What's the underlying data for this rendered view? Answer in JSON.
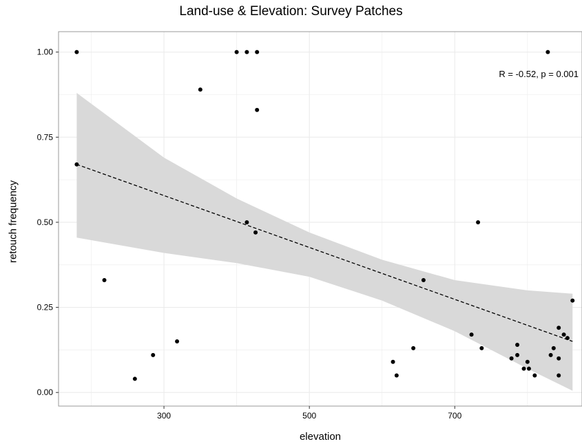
{
  "chart_data": {
    "type": "scatter",
    "title": "Land-use & Elevation: Survey Patches",
    "xlabel": "elevation",
    "ylabel": "retouch frequency",
    "xlim": [
      155,
      875
    ],
    "ylim": [
      -0.04,
      1.06
    ],
    "xticks": [
      300,
      500,
      700
    ],
    "xtick_labels": [
      "300",
      "500",
      "700"
    ],
    "yticks": [
      0,
      0.25,
      0.5,
      0.75,
      1.0
    ],
    "ytick_labels": [
      "0.00",
      "0.25",
      "0.50",
      "0.75",
      "1.00"
    ],
    "grid": true,
    "annotation": "R = -0.52, p = 0.001",
    "points": [
      {
        "x": 180,
        "y": 1.0
      },
      {
        "x": 180,
        "y": 0.67
      },
      {
        "x": 218,
        "y": 0.33
      },
      {
        "x": 260,
        "y": 0.04
      },
      {
        "x": 285,
        "y": 0.11
      },
      {
        "x": 318,
        "y": 0.15
      },
      {
        "x": 350,
        "y": 0.89
      },
      {
        "x": 400,
        "y": 1.0
      },
      {
        "x": 414,
        "y": 1.0
      },
      {
        "x": 428,
        "y": 1.0
      },
      {
        "x": 428,
        "y": 0.83
      },
      {
        "x": 414,
        "y": 0.5
      },
      {
        "x": 426,
        "y": 0.47
      },
      {
        "x": 615,
        "y": 0.09
      },
      {
        "x": 620,
        "y": 0.05
      },
      {
        "x": 643,
        "y": 0.13
      },
      {
        "x": 657,
        "y": 0.33
      },
      {
        "x": 723,
        "y": 0.17
      },
      {
        "x": 732,
        "y": 0.5
      },
      {
        "x": 737,
        "y": 0.13
      },
      {
        "x": 778,
        "y": 0.1
      },
      {
        "x": 786,
        "y": 0.14
      },
      {
        "x": 786,
        "y": 0.11
      },
      {
        "x": 795,
        "y": 0.07
      },
      {
        "x": 800,
        "y": 0.09
      },
      {
        "x": 802,
        "y": 0.07
      },
      {
        "x": 810,
        "y": 0.05
      },
      {
        "x": 828,
        "y": 1.0
      },
      {
        "x": 832,
        "y": 0.11
      },
      {
        "x": 836,
        "y": 0.13
      },
      {
        "x": 843,
        "y": 0.19
      },
      {
        "x": 843,
        "y": 0.1
      },
      {
        "x": 843,
        "y": 0.05
      },
      {
        "x": 850,
        "y": 0.17
      },
      {
        "x": 855,
        "y": 0.16
      },
      {
        "x": 862,
        "y": 0.27
      }
    ],
    "fit_line": {
      "x": [
        180,
        862
      ],
      "y": [
        0.67,
        0.15
      ],
      "style": "dashed"
    },
    "confidence_band": {
      "x": [
        180,
        300,
        400,
        500,
        600,
        700,
        800,
        862
      ],
      "upper": [
        0.88,
        0.69,
        0.57,
        0.47,
        0.39,
        0.33,
        0.3,
        0.29
      ],
      "lower": [
        0.455,
        0.41,
        0.38,
        0.34,
        0.27,
        0.18,
        0.07,
        0.005
      ]
    },
    "colors": {
      "point": "#000000",
      "band": "#d9d9d9",
      "grid": "#ebebeb",
      "panel_border": "#999999"
    }
  }
}
